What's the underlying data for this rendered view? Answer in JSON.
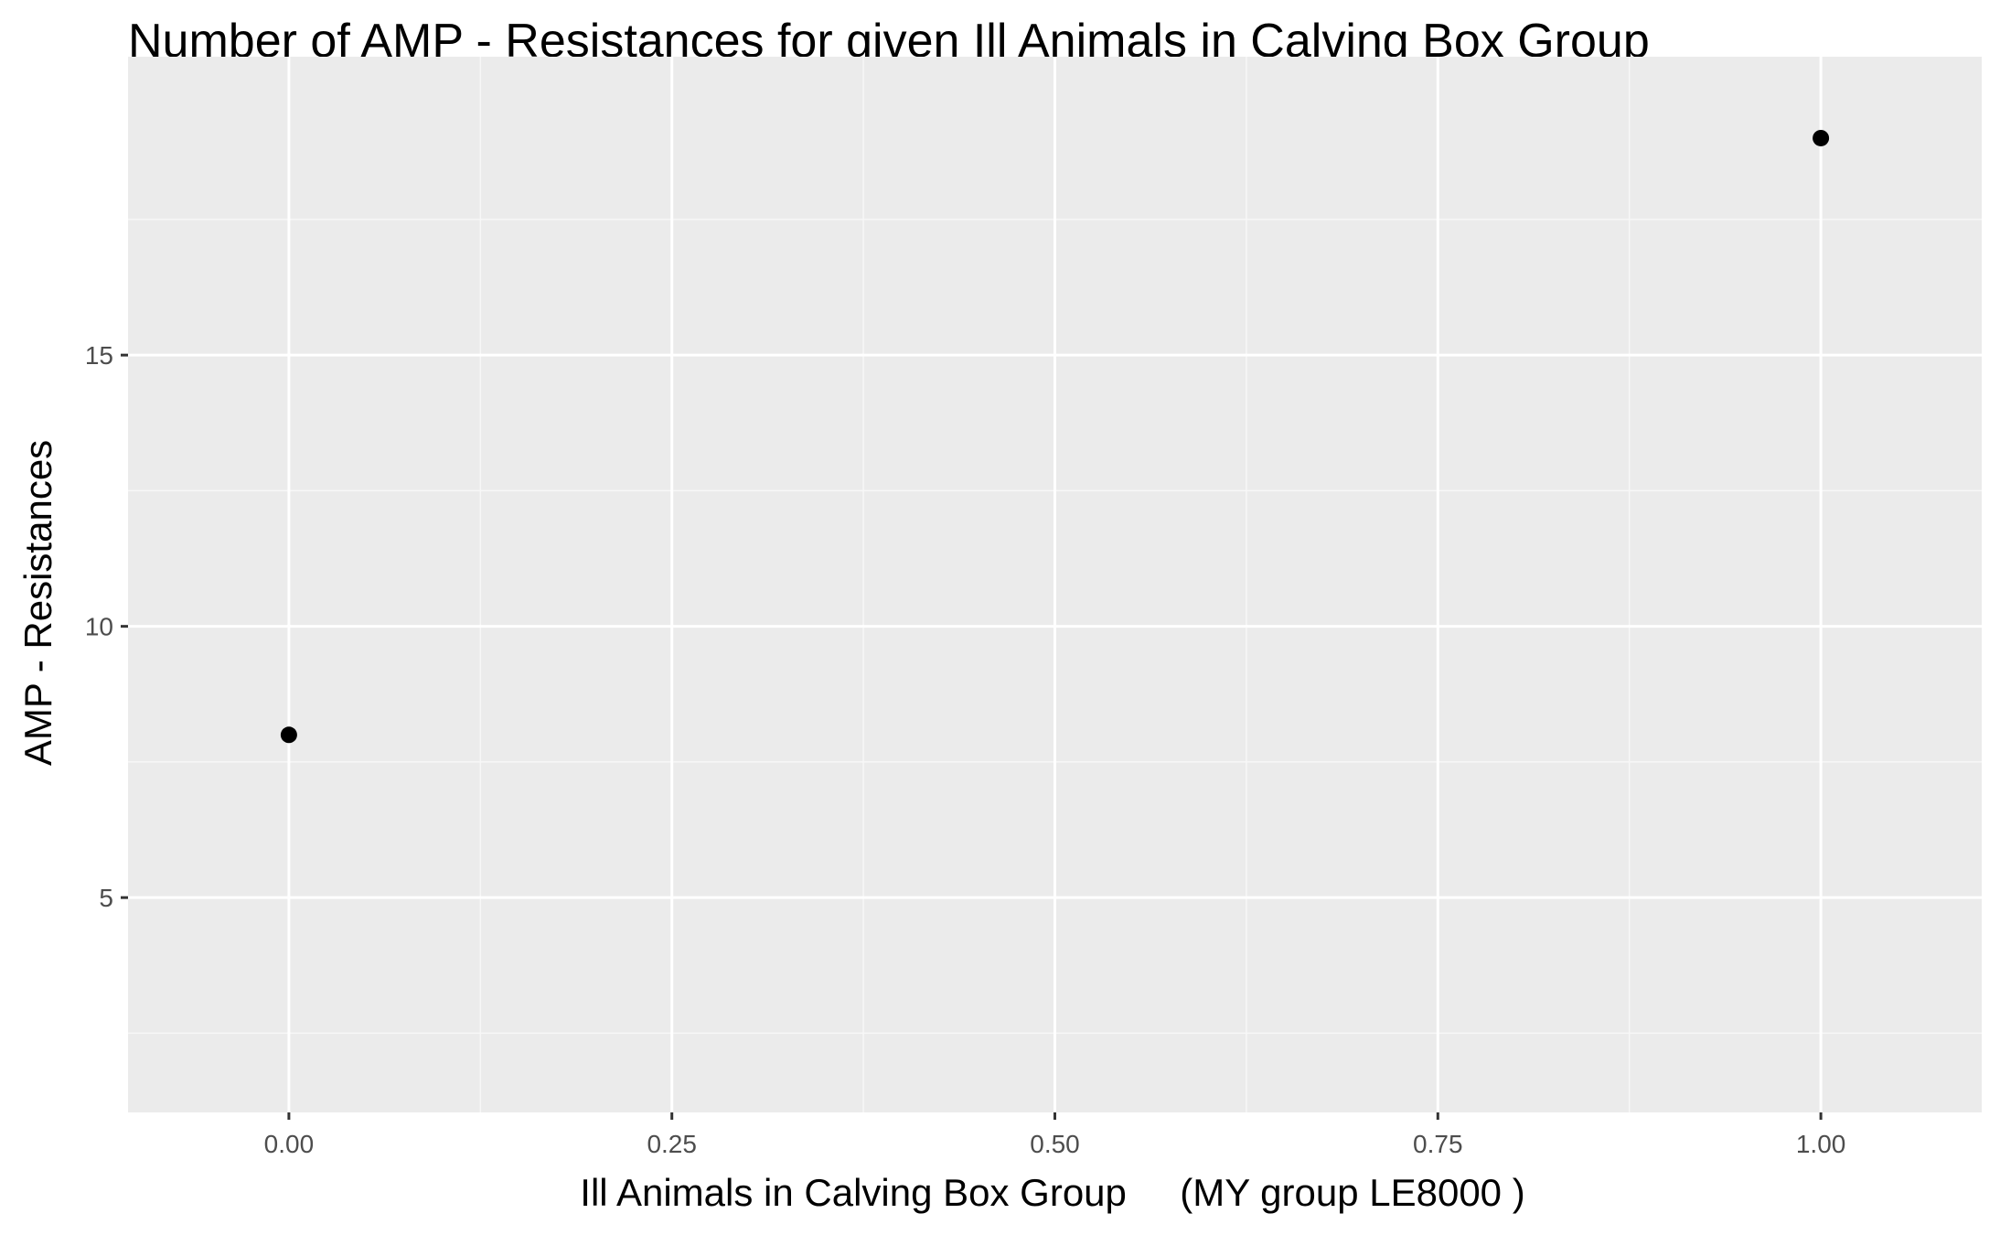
{
  "chart_data": {
    "type": "scatter",
    "title": "Number of AMP - Resistances for given Ill Animals in Calving Box Group",
    "xlabel": "Ill Animals in Calving Box Group     (MY group LE8000 )",
    "ylabel": "AMP - Resistances",
    "xlim": [
      -0.105,
      1.105
    ],
    "ylim": [
      1.04,
      20.5
    ],
    "x_ticks": [
      0.0,
      0.25,
      0.5,
      0.75,
      1.0
    ],
    "x_tick_labels": [
      "0.00",
      "0.25",
      "0.50",
      "0.75",
      "1.00"
    ],
    "x_minor_ticks": [
      0.125,
      0.375,
      0.625,
      0.875
    ],
    "y_ticks": [
      5,
      10,
      15
    ],
    "y_tick_labels": [
      "5",
      "10",
      "15"
    ],
    "y_minor_ticks": [
      2.5,
      7.5,
      12.5,
      17.5
    ],
    "points": [
      {
        "x": 0,
        "y": 8
      },
      {
        "x": 1,
        "y": 19
      }
    ],
    "grid": true,
    "legend": "none",
    "colors": {
      "panel_background": "#EBEBEB",
      "grid_major": "#FFFFFF",
      "grid_minor": "#F7F7F7",
      "point": "#000000",
      "tick_label": "#4D4D4D",
      "axis_tick": "#333333",
      "text": "#000000"
    }
  }
}
